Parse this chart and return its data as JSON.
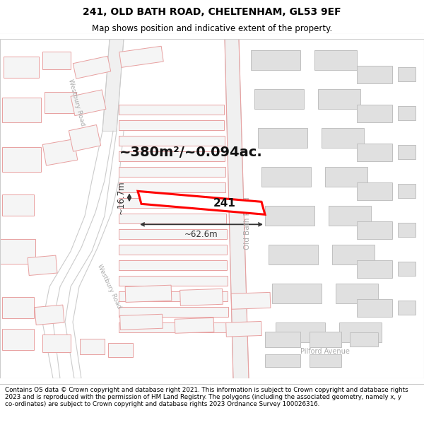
{
  "title_line1": "241, OLD BATH ROAD, CHELTENHAM, GL53 9EF",
  "title_line2": "Map shows position and indicative extent of the property.",
  "footer_text": "Contains OS data © Crown copyright and database right 2021. This information is subject to Crown copyright and database rights 2023 and is reproduced with the permission of HM Land Registry. The polygons (including the associated geometry, namely x, y co-ordinates) are subject to Crown copyright and database rights 2023 Ordnance Survey 100026316.",
  "area_label": "~380m²/~0.094ac.",
  "width_label": "~62.6m",
  "height_label": "~16.7m",
  "number_label": "241",
  "map_bg": "#ffffff",
  "bld_fill": "#f5f5f5",
  "bld_stroke": "#e8a0a0",
  "road_stroke": "#e8a0a0",
  "road_fill": "#ffffff",
  "gray_bld_fill": "#e0e0e0",
  "gray_bld_stroke": "#c0c0c0",
  "road_band": "#f0f0f0",
  "highlight_fill": "#ffffff",
  "highlight_stroke": "#ff0000",
  "dim_color": "#333333",
  "title_color": "#000000",
  "road_label_color": "#aaaaaa"
}
